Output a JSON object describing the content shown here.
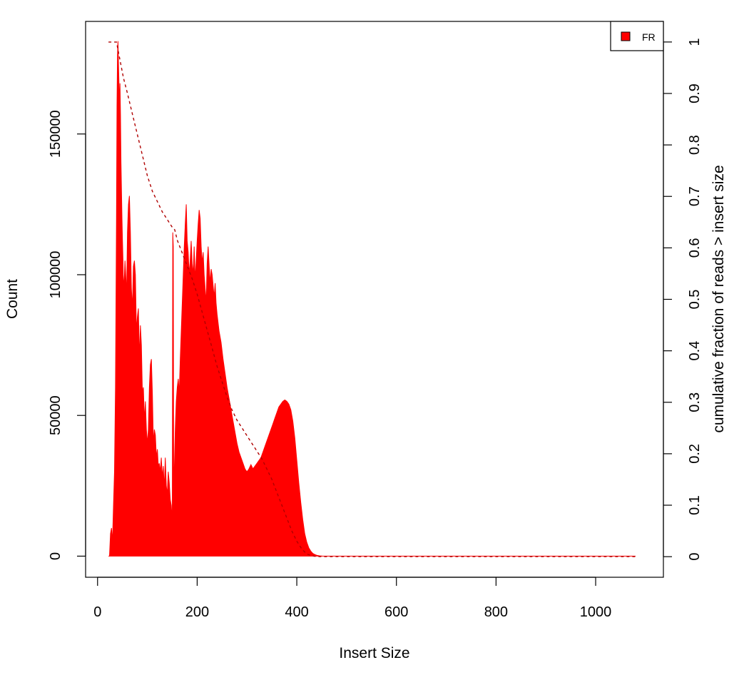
{
  "chart_data": {
    "type": "area",
    "xlabel": "Insert Size",
    "ylabel": "Count",
    "y2label": "cumulative fraction of reads > insert size",
    "xlim": [
      -24,
      1136
    ],
    "ylim": [
      -7500,
      190000
    ],
    "y2lim": [
      -0.04,
      1.04
    ],
    "xticks": [
      0,
      200,
      400,
      600,
      800,
      1000
    ],
    "yticks": [
      0,
      50000,
      100000,
      150000
    ],
    "y2ticks": [
      0,
      0.1,
      0.2,
      0.3,
      0.4,
      0.5,
      0.6,
      0.7,
      0.8,
      0.9,
      1
    ],
    "y2ticklabels": [
      "0",
      "0.1",
      "0.2",
      "0.3",
      "0.4",
      "0.5",
      "0.6",
      "0.7",
      "0.8",
      "0.9",
      "1"
    ],
    "legend": {
      "entries": [
        "FR"
      ],
      "placement": "top-right"
    },
    "colors": {
      "histogram": "#ff0000",
      "cumulative": "#b00000"
    },
    "grid": false,
    "series": [
      {
        "name": "FR",
        "kind": "histogram",
        "points": [
          [
            22,
            0
          ],
          [
            24,
            0
          ],
          [
            26,
            8000
          ],
          [
            28,
            10000
          ],
          [
            30,
            5000
          ],
          [
            32,
            18000
          ],
          [
            34,
            30000
          ],
          [
            36,
            60000
          ],
          [
            38,
            120000
          ],
          [
            39,
            160000
          ],
          [
            40,
            178000
          ],
          [
            41,
            183000
          ],
          [
            42,
            175000
          ],
          [
            43,
            168000
          ],
          [
            44,
            160000
          ],
          [
            45,
            168000
          ],
          [
            46,
            157000
          ],
          [
            47,
            140000
          ],
          [
            48,
            130000
          ],
          [
            49,
            120000
          ],
          [
            50,
            112000
          ],
          [
            51,
            105000
          ],
          [
            52,
            95000
          ],
          [
            54,
            100000
          ],
          [
            55,
            105000
          ],
          [
            57,
            98000
          ],
          [
            58,
            90000
          ],
          [
            60,
            115000
          ],
          [
            62,
            125000
          ],
          [
            64,
            128000
          ],
          [
            66,
            115000
          ],
          [
            68,
            95000
          ],
          [
            70,
            88000
          ],
          [
            72,
            103000
          ],
          [
            74,
            105000
          ],
          [
            76,
            100000
          ],
          [
            78,
            80000
          ],
          [
            80,
            85000
          ],
          [
            82,
            88000
          ],
          [
            84,
            70000
          ],
          [
            86,
            82000
          ],
          [
            88,
            75000
          ],
          [
            90,
            58000
          ],
          [
            92,
            60000
          ],
          [
            94,
            48000
          ],
          [
            96,
            55000
          ],
          [
            98,
            45000
          ],
          [
            100,
            40000
          ],
          [
            102,
            45000
          ],
          [
            104,
            60000
          ],
          [
            106,
            68000
          ],
          [
            108,
            70000
          ],
          [
            110,
            58000
          ],
          [
            112,
            40000
          ],
          [
            114,
            45000
          ],
          [
            116,
            43000
          ],
          [
            118,
            35000
          ],
          [
            120,
            38000
          ],
          [
            122,
            32000
          ],
          [
            124,
            33000
          ],
          [
            126,
            30000
          ],
          [
            128,
            35000
          ],
          [
            130,
            28000
          ],
          [
            132,
            32000
          ],
          [
            134,
            24000
          ],
          [
            136,
            35000
          ],
          [
            138,
            25000
          ],
          [
            140,
            22000
          ],
          [
            142,
            30000
          ],
          [
            144,
            26000
          ],
          [
            146,
            20000
          ],
          [
            148,
            18000
          ],
          [
            150,
            12000
          ],
          [
            151,
            115000
          ],
          [
            152,
            110000
          ],
          [
            153,
            8000
          ],
          [
            154,
            30000
          ],
          [
            156,
            45000
          ],
          [
            158,
            55000
          ],
          [
            160,
            60000
          ],
          [
            162,
            63000
          ],
          [
            164,
            58000
          ],
          [
            166,
            70000
          ],
          [
            168,
            80000
          ],
          [
            170,
            90000
          ],
          [
            172,
            100000
          ],
          [
            174,
            110000
          ],
          [
            176,
            118000
          ],
          [
            178,
            125000
          ],
          [
            180,
            112000
          ],
          [
            182,
            108000
          ],
          [
            184,
            100000
          ],
          [
            186,
            105000
          ],
          [
            188,
            112000
          ],
          [
            190,
            104000
          ],
          [
            192,
            100000
          ],
          [
            194,
            110000
          ],
          [
            196,
            98000
          ],
          [
            198,
            105000
          ],
          [
            200,
            112000
          ],
          [
            202,
            118000
          ],
          [
            204,
            123000
          ],
          [
            206,
            120000
          ],
          [
            208,
            110000
          ],
          [
            210,
            104000
          ],
          [
            212,
            108000
          ],
          [
            214,
            100000
          ],
          [
            216,
            95000
          ],
          [
            218,
            90000
          ],
          [
            220,
            104000
          ],
          [
            222,
            110000
          ],
          [
            224,
            103000
          ],
          [
            226,
            97000
          ],
          [
            228,
            102000
          ],
          [
            230,
            100000
          ],
          [
            232,
            96000
          ],
          [
            234,
            92000
          ],
          [
            236,
            97000
          ],
          [
            238,
            90000
          ],
          [
            240,
            86000
          ],
          [
            244,
            80000
          ],
          [
            248,
            76000
          ],
          [
            252,
            70000
          ],
          [
            256,
            65000
          ],
          [
            260,
            60000
          ],
          [
            264,
            56000
          ],
          [
            268,
            52000
          ],
          [
            272,
            48000
          ],
          [
            276,
            44000
          ],
          [
            280,
            40000
          ],
          [
            284,
            37000
          ],
          [
            288,
            35000
          ],
          [
            292,
            33000
          ],
          [
            296,
            31000
          ],
          [
            300,
            30000
          ],
          [
            304,
            31000
          ],
          [
            308,
            32500
          ],
          [
            312,
            31000
          ],
          [
            316,
            32000
          ],
          [
            320,
            33000
          ],
          [
            324,
            34000
          ],
          [
            328,
            35000
          ],
          [
            332,
            37000
          ],
          [
            336,
            39000
          ],
          [
            340,
            41000
          ],
          [
            344,
            43000
          ],
          [
            348,
            45000
          ],
          [
            352,
            47000
          ],
          [
            356,
            49000
          ],
          [
            360,
            51000
          ],
          [
            364,
            53000
          ],
          [
            368,
            54000
          ],
          [
            372,
            55000
          ],
          [
            376,
            55500
          ],
          [
            380,
            55000
          ],
          [
            384,
            54000
          ],
          [
            388,
            52000
          ],
          [
            392,
            48000
          ],
          [
            396,
            42000
          ],
          [
            400,
            34000
          ],
          [
            404,
            26000
          ],
          [
            408,
            19000
          ],
          [
            412,
            13000
          ],
          [
            416,
            8000
          ],
          [
            420,
            5000
          ],
          [
            424,
            3000
          ],
          [
            428,
            1800
          ],
          [
            432,
            1000
          ],
          [
            436,
            600
          ],
          [
            440,
            300
          ],
          [
            446,
            100
          ],
          [
            452,
            0
          ],
          [
            1080,
            0
          ]
        ]
      },
      {
        "name": "cumulative",
        "kind": "line",
        "style": "dashed",
        "axis": "right",
        "points": [
          [
            22,
            1.0
          ],
          [
            34,
            1.0
          ],
          [
            38,
            1.0
          ],
          [
            42,
            0.98
          ],
          [
            46,
            0.96
          ],
          [
            52,
            0.93
          ],
          [
            60,
            0.9
          ],
          [
            70,
            0.86
          ],
          [
            80,
            0.82
          ],
          [
            90,
            0.78
          ],
          [
            100,
            0.74
          ],
          [
            110,
            0.71
          ],
          [
            120,
            0.69
          ],
          [
            130,
            0.67
          ],
          [
            140,
            0.655
          ],
          [
            150,
            0.64
          ],
          [
            155,
            0.635
          ],
          [
            160,
            0.615
          ],
          [
            170,
            0.59
          ],
          [
            180,
            0.565
          ],
          [
            190,
            0.54
          ],
          [
            200,
            0.51
          ],
          [
            210,
            0.475
          ],
          [
            220,
            0.44
          ],
          [
            230,
            0.405
          ],
          [
            240,
            0.37
          ],
          [
            250,
            0.34
          ],
          [
            260,
            0.31
          ],
          [
            270,
            0.285
          ],
          [
            280,
            0.265
          ],
          [
            290,
            0.25
          ],
          [
            300,
            0.235
          ],
          [
            310,
            0.22
          ],
          [
            320,
            0.205
          ],
          [
            330,
            0.19
          ],
          [
            340,
            0.17
          ],
          [
            350,
            0.15
          ],
          [
            360,
            0.125
          ],
          [
            370,
            0.1
          ],
          [
            380,
            0.075
          ],
          [
            390,
            0.05
          ],
          [
            400,
            0.03
          ],
          [
            410,
            0.015
          ],
          [
            420,
            0.005
          ],
          [
            430,
            0.002
          ],
          [
            440,
            0.0
          ],
          [
            460,
            0.0
          ],
          [
            1080,
            0.0
          ]
        ]
      }
    ]
  }
}
